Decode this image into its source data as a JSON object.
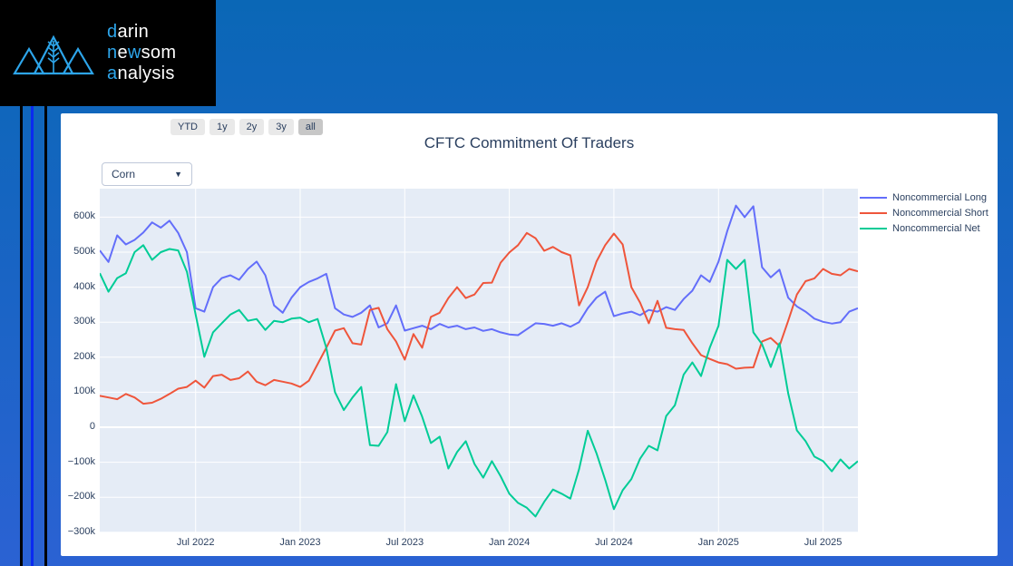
{
  "page": {
    "background_top_color": "#0a67b6",
    "background_bottom_color": "#2b62d3",
    "stripe_black_color": "#000000",
    "stripe_blue_color": "#0a2af0",
    "logo_accent_color": "#2da5ea"
  },
  "logo": {
    "segments": [
      [
        "d",
        "arin"
      ],
      [
        "n",
        "e",
        "w",
        "som"
      ],
      [
        "a",
        "nalysis"
      ]
    ]
  },
  "controls": {
    "range_buttons": [
      "YTD",
      "1y",
      "2y",
      "3y",
      "all"
    ],
    "active_range": "all",
    "dropdown_value": "Corn",
    "dropdown_caret": "▼"
  },
  "chart_data": {
    "type": "line",
    "title": "CFTC Commitment Of Traders",
    "x_description": "88 semi-monthly observations, mid-January 2022 through early September 2025",
    "y_unit": "contracts, thousands",
    "plot_bg": "#E5ECF6",
    "grid_color": "#FFFFFF",
    "grid": true,
    "legend_position": "top-right-outside",
    "y_axis_range": [
      -295,
      681
    ],
    "y_ticks": [
      {
        "value": 600,
        "label": "600k"
      },
      {
        "value": 500,
        "label": "500k"
      },
      {
        "value": 400,
        "label": "400k"
      },
      {
        "value": 300,
        "label": "300k"
      },
      {
        "value": 200,
        "label": "200k"
      },
      {
        "value": 100,
        "label": "100k"
      },
      {
        "value": 0,
        "label": "0"
      },
      {
        "value": -100,
        "label": "−100k"
      },
      {
        "value": -200,
        "label": "−200k"
      },
      {
        "value": -300,
        "label": "−300k"
      }
    ],
    "x_ticks": [
      {
        "index": 11,
        "label": "Jul 2022"
      },
      {
        "index": 23,
        "label": "Jan 2023"
      },
      {
        "index": 35,
        "label": "Jul 2023"
      },
      {
        "index": 47,
        "label": "Jan 2024"
      },
      {
        "index": 59,
        "label": "Jul 2024"
      },
      {
        "index": 71,
        "label": "Jan 2025"
      },
      {
        "index": 83,
        "label": "Jul 2025"
      }
    ],
    "series": [
      {
        "name": "Noncommercial Long",
        "color": "#636EFA",
        "values": [
          505,
          472,
          548,
          522,
          535,
          556,
          585,
          570,
          590,
          555,
          500,
          340,
          330,
          400,
          426,
          434,
          421,
          452,
          473,
          434,
          348,
          327,
          370,
          400,
          415,
          425,
          438,
          340,
          322,
          315,
          327,
          348,
          285,
          297,
          348,
          276,
          283,
          290,
          280,
          295,
          285,
          290,
          280,
          285,
          275,
          280,
          271,
          265,
          263,
          280,
          297,
          295,
          290,
          297,
          287,
          300,
          340,
          370,
          387,
          317,
          325,
          330,
          320,
          335,
          330,
          343,
          335,
          366,
          390,
          434,
          415,
          473,
          560,
          633,
          600,
          631,
          457,
          428,
          450,
          370,
          345,
          330,
          310,
          301,
          296,
          300,
          330,
          340
        ]
      },
      {
        "name": "Noncommercial Short",
        "color": "#EF553B",
        "values": [
          90,
          85,
          80,
          95,
          85,
          67,
          70,
          81,
          95,
          110,
          115,
          133,
          113,
          146,
          150,
          135,
          140,
          159,
          130,
          120,
          135,
          130,
          125,
          115,
          133,
          180,
          227,
          276,
          283,
          240,
          236,
          335,
          341,
          280,
          245,
          193,
          266,
          227,
          315,
          327,
          369,
          400,
          369,
          379,
          412,
          413,
          470,
          499,
          520,
          555,
          540,
          504,
          515,
          500,
          491,
          348,
          400,
          473,
          520,
          553,
          522,
          400,
          356,
          297,
          361,
          284,
          280,
          278,
          240,
          206,
          195,
          185,
          180,
          167,
          170,
          171,
          245,
          255,
          232,
          304,
          379,
          417,
          425,
          452,
          438,
          434,
          452,
          445
        ]
      },
      {
        "name": "Noncommercial Net",
        "color": "#00CC96",
        "values": [
          440,
          387,
          426,
          440,
          500,
          520,
          478,
          500,
          509,
          505,
          444,
          322,
          201,
          271,
          297,
          322,
          335,
          304,
          309,
          278,
          304,
          300,
          310,
          313,
          300,
          309,
          227,
          100,
          49,
          85,
          115,
          -51,
          -53,
          -14,
          123,
          17,
          91,
          30,
          -45,
          -27,
          -118,
          -71,
          -40,
          -105,
          -144,
          -97,
          -140,
          -190,
          -216,
          -230,
          -255,
          -213,
          -178,
          -190,
          -204,
          -120,
          -10,
          -74,
          -150,
          -234,
          -180,
          -148,
          -90,
          -53,
          -66,
          32,
          63,
          150,
          185,
          146,
          227,
          290,
          478,
          452,
          478,
          271,
          237,
          172,
          240,
          97,
          -9,
          -40,
          -84,
          -97,
          -126,
          -92,
          -118,
          -97
        ]
      }
    ]
  }
}
